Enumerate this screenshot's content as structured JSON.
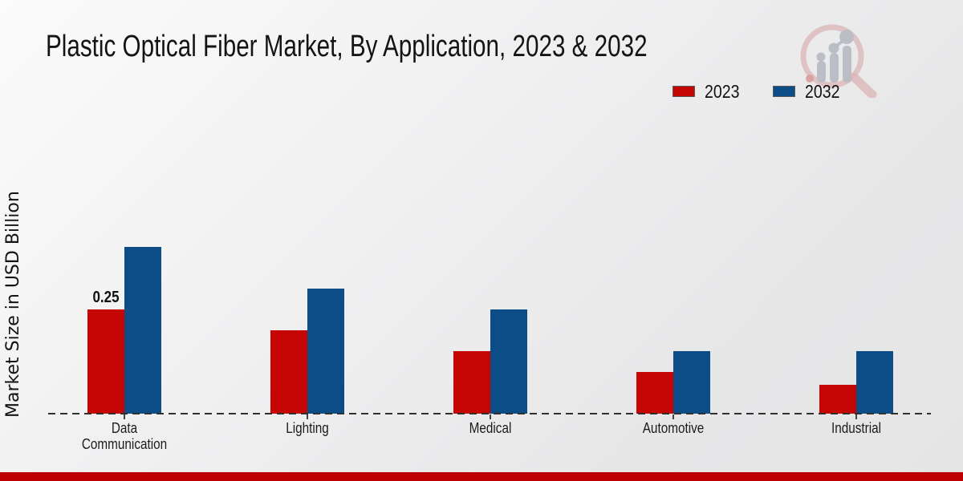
{
  "title": "Plastic Optical Fiber Market, By Application, 2023 & 2032",
  "y_axis_label": "Market Size in USD Billion",
  "colors": {
    "series_2023": "#c60505",
    "series_2032": "#0d4d87",
    "footer_band": "#bd0101",
    "baseline": "#303030"
  },
  "logo": {
    "name": "market-research-magnifier-watermark",
    "ring_color": "#dcb9ba",
    "bars_color": "#b9bcc3"
  },
  "chart_data": {
    "type": "bar",
    "categories": [
      "Data Communication",
      "Lighting",
      "Medical",
      "Automotive",
      "Industrial"
    ],
    "series": [
      {
        "name": "2023",
        "color": "#c60505",
        "values": [
          0.25,
          0.2,
          0.15,
          0.1,
          0.07
        ]
      },
      {
        "name": "2032",
        "color": "#0d4d87",
        "values": [
          0.4,
          0.3,
          0.25,
          0.15,
          0.15
        ]
      }
    ],
    "title": "Plastic Optical Fiber Market, By Application, 2023 & 2032",
    "xlabel": "",
    "ylabel": "Market Size in USD Billion",
    "ylim": [
      0,
      0.45
    ],
    "grid": false,
    "legend_position": "upper right",
    "baseline_style": "dashed",
    "annotations": [
      {
        "series": "2023",
        "category": "Data Communication",
        "text": "0.25"
      }
    ]
  }
}
